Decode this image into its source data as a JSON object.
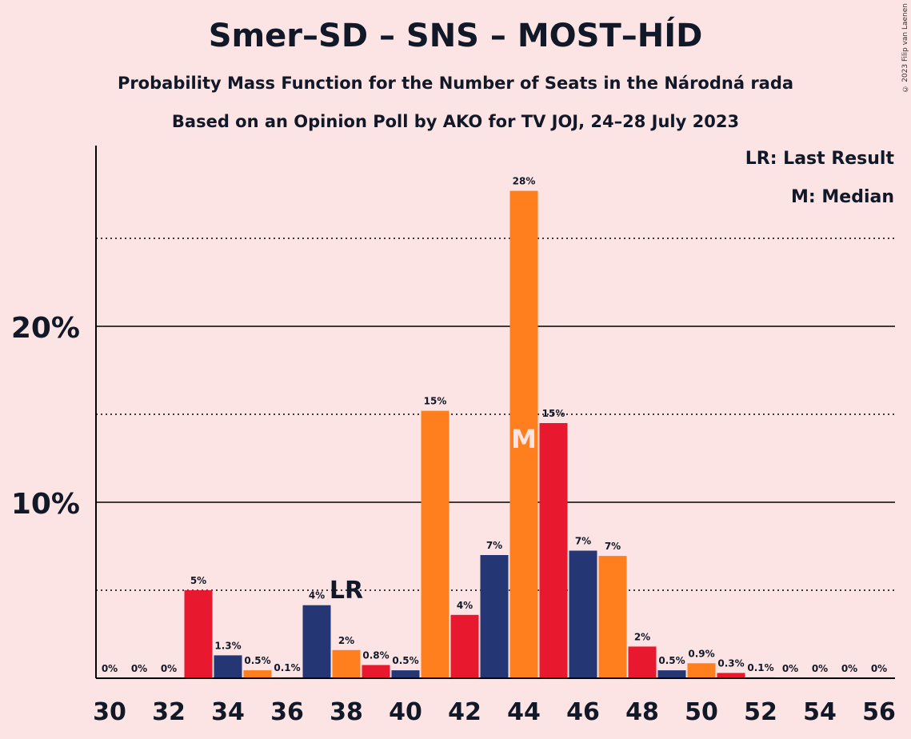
{
  "title": "Smer–SD – SNS – MOST–HÍD",
  "subtitle1": "Probability Mass Function for the Number of Seats in the Národná rada",
  "subtitle2": "Based on an Opinion Poll by AKO for TV JOJ, 24–28 July 2023",
  "copyright": "© 2023 Filip van Laenen",
  "legend": {
    "last_result": "LR: Last Result",
    "median": "M: Median"
  },
  "colors": {
    "background": "#FDE4E4",
    "navy": "#243673",
    "orange": "#FF7F1F",
    "red": "#E8192F",
    "text": "#111827"
  },
  "chart_data": {
    "type": "bar",
    "categories": [
      30,
      31,
      32,
      33,
      34,
      35,
      36,
      37,
      38,
      39,
      40,
      41,
      42,
      43,
      44,
      45,
      46,
      47,
      48,
      49,
      50,
      51,
      52,
      53,
      54,
      55,
      56
    ],
    "values": [
      0,
      0,
      0,
      5.0,
      1.3,
      0.45,
      0.05,
      4.15,
      1.6,
      0.75,
      0.45,
      15.2,
      3.6,
      7.0,
      27.7,
      14.5,
      7.25,
      6.95,
      1.8,
      0.45,
      0.85,
      0.3,
      0.05,
      0,
      0,
      0,
      0
    ],
    "labels": [
      "0%",
      "0%",
      "0%",
      "5%",
      "1.3%",
      "0.5%",
      "0.1%",
      "4%",
      "2%",
      "0.8%",
      "0.5%",
      "15%",
      "4%",
      "7%",
      "28%",
      "15%",
      "7%",
      "7%",
      "2%",
      "0.5%",
      "0.9%",
      "0.3%",
      "0.1%",
      "0%",
      "0%",
      "0%",
      "0%"
    ],
    "bar_colors": [
      "red",
      "orange",
      "navy",
      "red",
      "navy",
      "orange",
      "red",
      "navy",
      "orange",
      "red",
      "navy",
      "orange",
      "red",
      "navy",
      "orange",
      "red",
      "navy",
      "orange",
      "red",
      "navy",
      "orange",
      "red",
      "navy",
      "orange",
      "red",
      "navy",
      "orange"
    ],
    "x_tick_labels": [
      "30",
      "32",
      "34",
      "36",
      "38",
      "40",
      "42",
      "44",
      "46",
      "48",
      "50",
      "52",
      "54",
      "56"
    ],
    "y_tick_labels": [
      {
        "value": 10,
        "label": "10%"
      },
      {
        "value": 20,
        "label": "20%"
      }
    ],
    "ylim": [
      0,
      30
    ],
    "solid_gridlines": [
      10,
      20
    ],
    "dotted_gridlines": [
      5,
      15,
      25
    ],
    "last_result": {
      "seats": 38,
      "label": "LR"
    },
    "median": {
      "seats": 44,
      "label": "M"
    },
    "xlabel": "",
    "ylabel": ""
  }
}
